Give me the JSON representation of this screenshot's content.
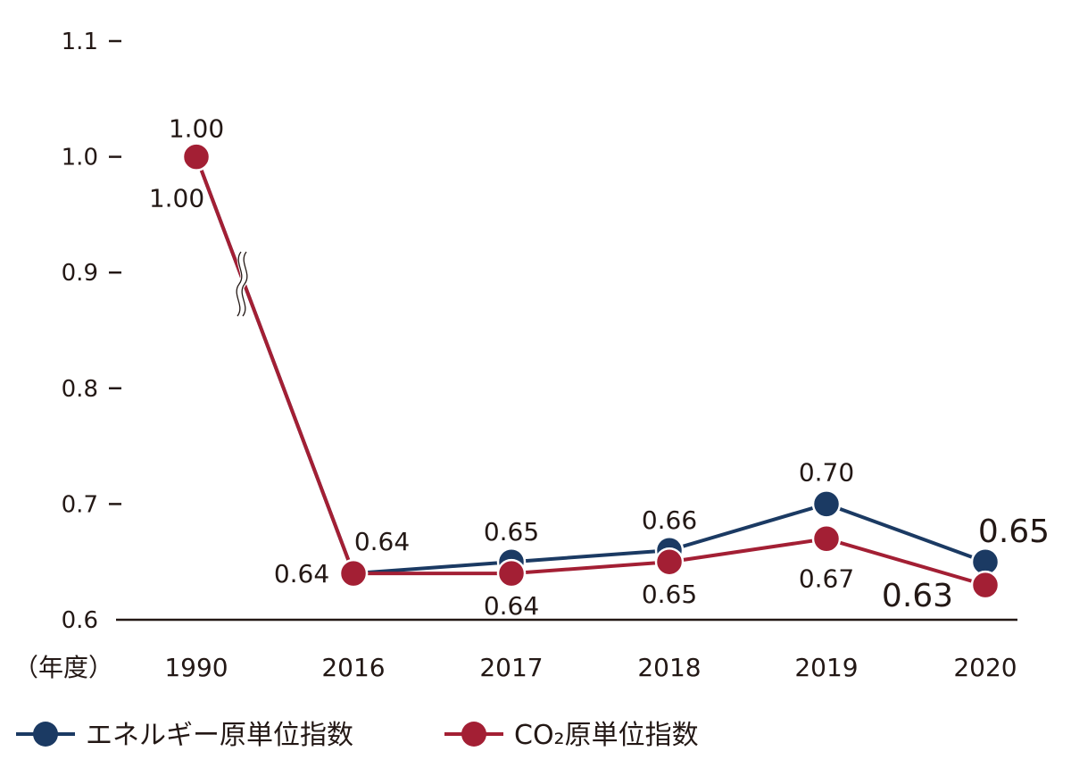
{
  "chart_data": {
    "type": "line",
    "categories": [
      "1990",
      "2016",
      "2017",
      "2018",
      "2019",
      "2020"
    ],
    "xlabel": "（年度）",
    "ylim": [
      0.6,
      1.1
    ],
    "yticks": [
      "0.6",
      "0.7",
      "0.8",
      "0.9",
      "1.0",
      "1.1"
    ],
    "ytick_values": [
      0.6,
      0.7,
      0.8,
      0.9,
      1.0,
      1.1
    ],
    "axis_break": "between 1990 and 2016",
    "legend_position": "bottom-left",
    "series": [
      {
        "name": "エネルギー原単位指数",
        "color": "#1b3a63",
        "values": [
          1.0,
          0.64,
          0.65,
          0.66,
          0.7,
          0.65
        ],
        "labels": [
          "1.00",
          "0.64",
          "0.65",
          "0.66",
          "0.70",
          "0.65"
        ]
      },
      {
        "name": "CO₂原単位指数",
        "color": "#a31f34",
        "values": [
          1.0,
          0.64,
          0.64,
          0.65,
          0.67,
          0.63
        ],
        "labels": [
          "1.00",
          "0.64",
          "0.64",
          "0.65",
          "0.67",
          "0.63"
        ]
      }
    ]
  }
}
